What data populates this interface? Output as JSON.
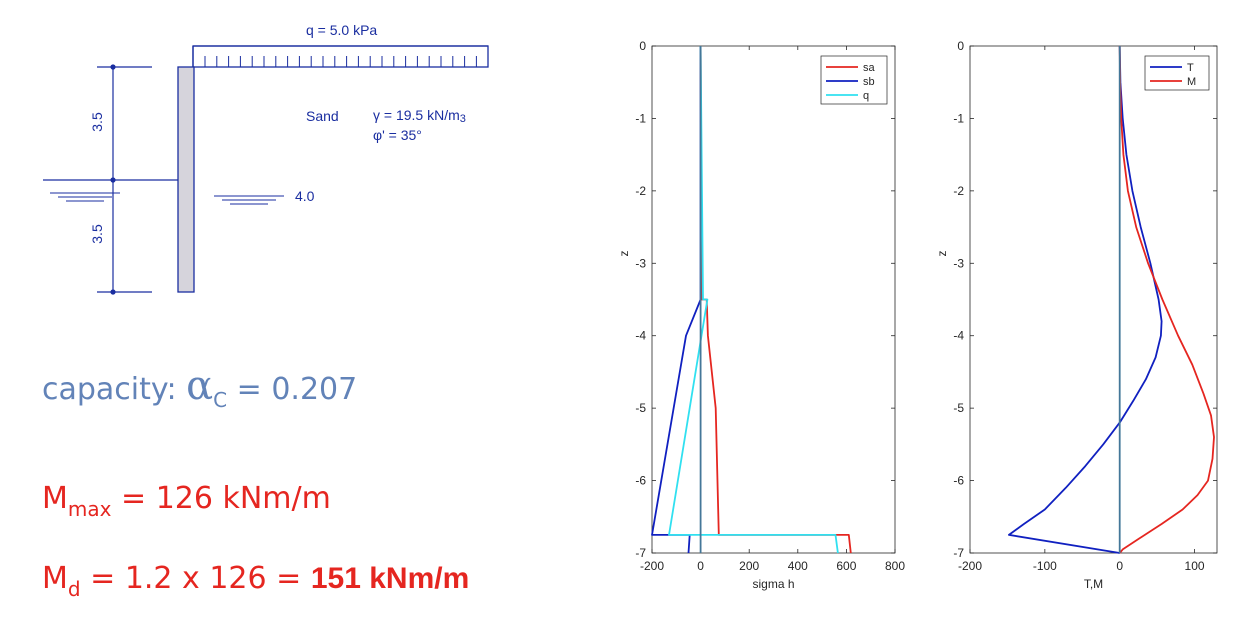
{
  "diagram": {
    "load_label": "q = 5.0 kPa",
    "soil_name": "Sand",
    "gamma_label": "γ = 19.5 kN/m",
    "gamma_exp": "3",
    "phi_label": "φ' = 35°",
    "dim_upper": "3.5",
    "dim_lower": "3.5",
    "water_level_label": "4.0"
  },
  "results": {
    "capacity_prefix": "capacity: ",
    "capacity_symbol": "α",
    "capacity_sub": "C",
    "capacity_value": " = 0.207",
    "mmax_symbol": "M",
    "mmax_sub": "max",
    "mmax_value": "= 126 kNm/m",
    "md_symbol": "M",
    "md_sub": "d",
    "md_expr": "= 1.2 x 126 = ",
    "md_result": "151 kNm/m"
  },
  "chart_data": [
    {
      "type": "line",
      "xlabel": "sigma h",
      "ylabel": "z",
      "xlim": [
        -200,
        800
      ],
      "ylim": [
        -7,
        0
      ],
      "xticks": [
        -200,
        0,
        200,
        400,
        600,
        800
      ],
      "yticks": [
        0,
        -1,
        -2,
        -3,
        -4,
        -5,
        -6,
        -7
      ],
      "grid": false,
      "legend_position": "top-right",
      "series": [
        {
          "name": "sa",
          "color": "#e52620",
          "x": [
            0,
            4,
            25,
            30,
            62,
            75,
            610,
            618
          ],
          "y": [
            0,
            -3.5,
            -3.5,
            -4.0,
            -5.0,
            -6.75,
            -6.75,
            -7.0
          ]
        },
        {
          "name": "sb",
          "color": "#1020c0",
          "x": [
            0,
            0,
            -60,
            -200,
            -45,
            -50
          ],
          "y": [
            0,
            -3.5,
            -4.0,
            -6.75,
            -6.75,
            -7.0
          ]
        },
        {
          "name": "q",
          "color": "#30e0f0",
          "x": [
            0,
            10,
            28,
            -130,
            555,
            565
          ],
          "y": [
            0,
            -3.5,
            -3.5,
            -6.75,
            -6.75,
            -7.0
          ]
        },
        {
          "name": "",
          "color": "#447799",
          "x": [
            0,
            0
          ],
          "y": [
            0,
            -7
          ]
        }
      ]
    },
    {
      "type": "line",
      "xlabel": "T,M",
      "ylabel": "z",
      "xlim": [
        -200,
        130
      ],
      "ylim": [
        -7,
        0
      ],
      "xticks": [
        -200,
        -100,
        0,
        100
      ],
      "yticks": [
        0,
        -1,
        -2,
        -3,
        -4,
        -5,
        -6,
        -7
      ],
      "grid": false,
      "legend_position": "top-right",
      "series": [
        {
          "name": "T",
          "color": "#1020c0",
          "x": [
            0,
            1,
            4,
            9,
            17,
            28,
            41,
            52,
            56,
            55,
            48,
            35,
            18,
            0,
            -22,
            -46,
            -72,
            -100,
            -128,
            -148,
            0
          ],
          "y": [
            0,
            -0.5,
            -1.0,
            -1.5,
            -2.0,
            -2.5,
            -3.0,
            -3.5,
            -3.8,
            -4.0,
            -4.3,
            -4.6,
            -4.9,
            -5.2,
            -5.5,
            -5.8,
            -6.1,
            -6.4,
            -6.6,
            -6.75,
            -7.0
          ]
        },
        {
          "name": "M",
          "color": "#e52620",
          "x": [
            0,
            0.5,
            2,
            5,
            11,
            22,
            38,
            57,
            78,
            97,
            112,
            122,
            126,
            124,
            118,
            104,
            84,
            56,
            26,
            4,
            0
          ],
          "y": [
            0,
            -0.5,
            -1.0,
            -1.5,
            -2.0,
            -2.5,
            -3.0,
            -3.5,
            -4.0,
            -4.4,
            -4.8,
            -5.1,
            -5.4,
            -5.7,
            -6.0,
            -6.2,
            -6.4,
            -6.6,
            -6.8,
            -6.95,
            -7.0
          ]
        },
        {
          "name": "",
          "color": "#447799",
          "x": [
            0,
            0
          ],
          "y": [
            0,
            -7
          ]
        }
      ]
    }
  ]
}
